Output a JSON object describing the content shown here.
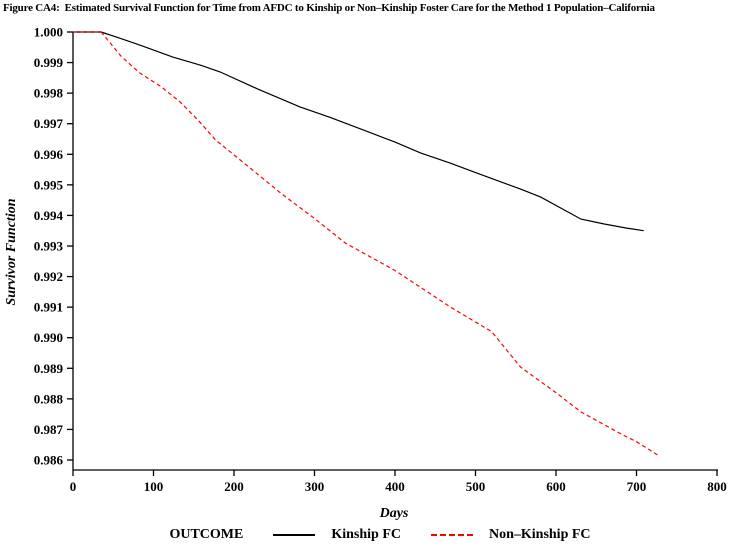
{
  "chart_data": {
    "type": "line",
    "title": "Figure CA4:  Estimated Survival Function for Time from AFDC to Kinship or Non–Kinship Foster Care for the Method 1 Population–California",
    "xlabel": "Days",
    "ylabel": "Survivor Function",
    "xlim": [
      0,
      800
    ],
    "ylim": [
      0.986,
      1.0
    ],
    "grid": false,
    "x_ticks": [
      "0",
      "100",
      "200",
      "300",
      "400",
      "500",
      "600",
      "700",
      "800"
    ],
    "y_ticks": [
      "1.000",
      "0.999",
      "0.998",
      "0.997",
      "0.996",
      "0.995",
      "0.994",
      "0.993",
      "0.992",
      "0.991",
      "0.990",
      "0.989",
      "0.988",
      "0.987",
      "0.986"
    ],
    "legend": {
      "label": "OUTCOME",
      "position": "bottom",
      "entries": [
        {
          "name": "Kinship FC",
          "color": "#000000",
          "style": "solid"
        },
        {
          "name": "Non–Kinship FC",
          "color": "#ff0000",
          "style": "dashed"
        }
      ]
    },
    "series": [
      {
        "name": "Kinship FC",
        "color": "#000000",
        "style": "solid",
        "points": [
          [
            0,
            1.0
          ],
          [
            35,
            1.0
          ],
          [
            60,
            0.99978
          ],
          [
            83,
            0.99957
          ],
          [
            124,
            0.99918
          ],
          [
            160,
            0.9989
          ],
          [
            183,
            0.99869
          ],
          [
            230,
            0.99813
          ],
          [
            282,
            0.99755
          ],
          [
            320,
            0.9972
          ],
          [
            361,
            0.99679
          ],
          [
            400,
            0.9964
          ],
          [
            432,
            0.99604
          ],
          [
            469,
            0.99571
          ],
          [
            500,
            0.9954
          ],
          [
            556,
            0.99486
          ],
          [
            581,
            0.9946
          ],
          [
            631,
            0.99388
          ],
          [
            660,
            0.99372
          ],
          [
            687,
            0.99359
          ],
          [
            709,
            0.9935
          ]
        ]
      },
      {
        "name": "Non–Kinship FC",
        "color": "#ff0000",
        "style": "dashed",
        "points": [
          [
            0,
            1.0
          ],
          [
            35,
            1.0
          ],
          [
            60,
            0.9992
          ],
          [
            83,
            0.99866
          ],
          [
            110,
            0.9982
          ],
          [
            133,
            0.99771
          ],
          [
            156,
            0.9971
          ],
          [
            177,
            0.99647
          ],
          [
            220,
            0.99555
          ],
          [
            258,
            0.99473
          ],
          [
            300,
            0.9939
          ],
          [
            338,
            0.9931
          ],
          [
            400,
            0.9922
          ],
          [
            469,
            0.991
          ],
          [
            520,
            0.9902
          ],
          [
            556,
            0.98904
          ],
          [
            600,
            0.9882
          ],
          [
            631,
            0.98757
          ],
          [
            683,
            0.98682
          ],
          [
            700,
            0.9866
          ],
          [
            727,
            0.98615
          ]
        ]
      }
    ]
  }
}
